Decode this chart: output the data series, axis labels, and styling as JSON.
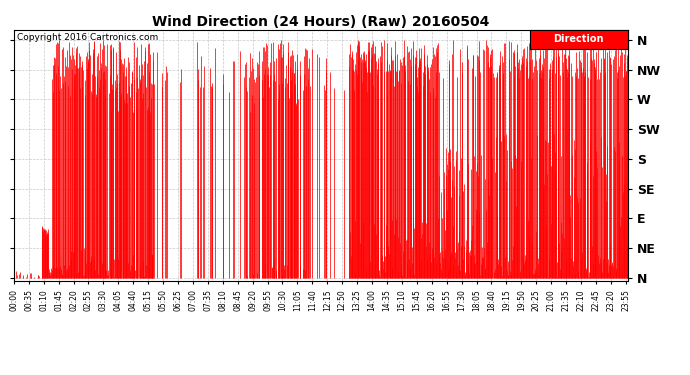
{
  "title": "Wind Direction (24 Hours) (Raw) 20160504",
  "copyright": "Copyright 2016 Cartronics.com",
  "background_color": "#ffffff",
  "plot_bg_color": "#ffffff",
  "line_color": "#ff0000",
  "grid_color": "#bbbbbb",
  "ytick_labels": [
    "N",
    "NW",
    "W",
    "SW",
    "S",
    "SE",
    "E",
    "NE",
    "N"
  ],
  "ytick_values": [
    360,
    315,
    270,
    225,
    180,
    135,
    90,
    45,
    0
  ],
  "ylim": [
    -5,
    375
  ],
  "legend_label": "Direction",
  "legend_color": "#ff0000",
  "legend_text_color": "#ffffff",
  "x_tick_interval_minutes": 35,
  "total_minutes": 1440,
  "seed": 42
}
